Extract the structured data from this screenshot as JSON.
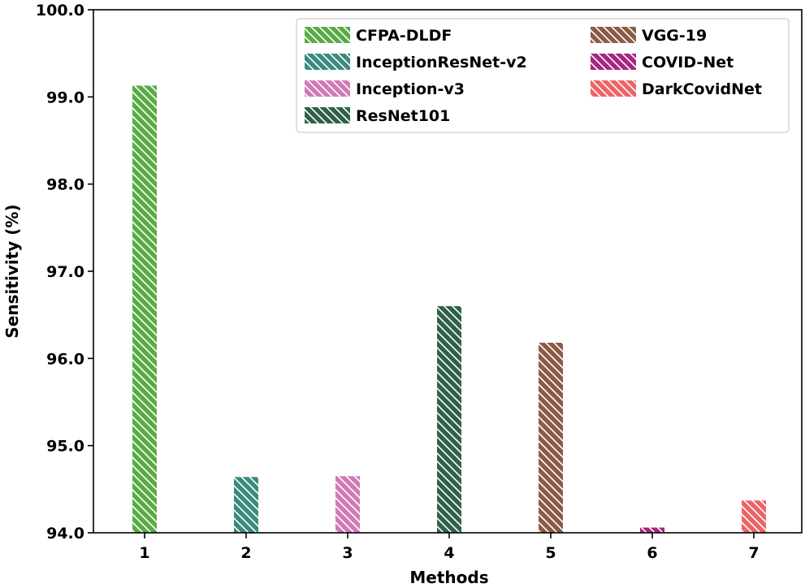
{
  "chart_data": {
    "type": "bar",
    "title": "",
    "xlabel": "Methods",
    "ylabel": "Sensitivity (%)",
    "ylim": [
      94.0,
      100.0
    ],
    "yticks": [
      "94.0",
      "95.0",
      "96.0",
      "97.0",
      "98.0",
      "99.0",
      "100.0"
    ],
    "categories": [
      "1",
      "2",
      "3",
      "4",
      "5",
      "6",
      "7"
    ],
    "series": [
      {
        "name": "CFPA-DLDF",
        "category": "1",
        "value": 99.13,
        "color": "#5aab46"
      },
      {
        "name": "InceptionResNet-v2",
        "category": "2",
        "value": 94.64,
        "color": "#3a8a7e"
      },
      {
        "name": "Inception-v3",
        "category": "3",
        "value": 94.65,
        "color": "#d17ab5"
      },
      {
        "name": "ResNet101",
        "category": "4",
        "value": 96.6,
        "color": "#2f6248"
      },
      {
        "name": "VGG-19",
        "category": "5",
        "value": 96.18,
        "color": "#8c5a45"
      },
      {
        "name": "COVID-Net",
        "category": "6",
        "value": 94.06,
        "color": "#a8267f"
      },
      {
        "name": "DarkCovidNet",
        "category": "7",
        "value": 94.37,
        "color": "#ec6466"
      }
    ],
    "legend_position": "top-right",
    "grid": false
  }
}
